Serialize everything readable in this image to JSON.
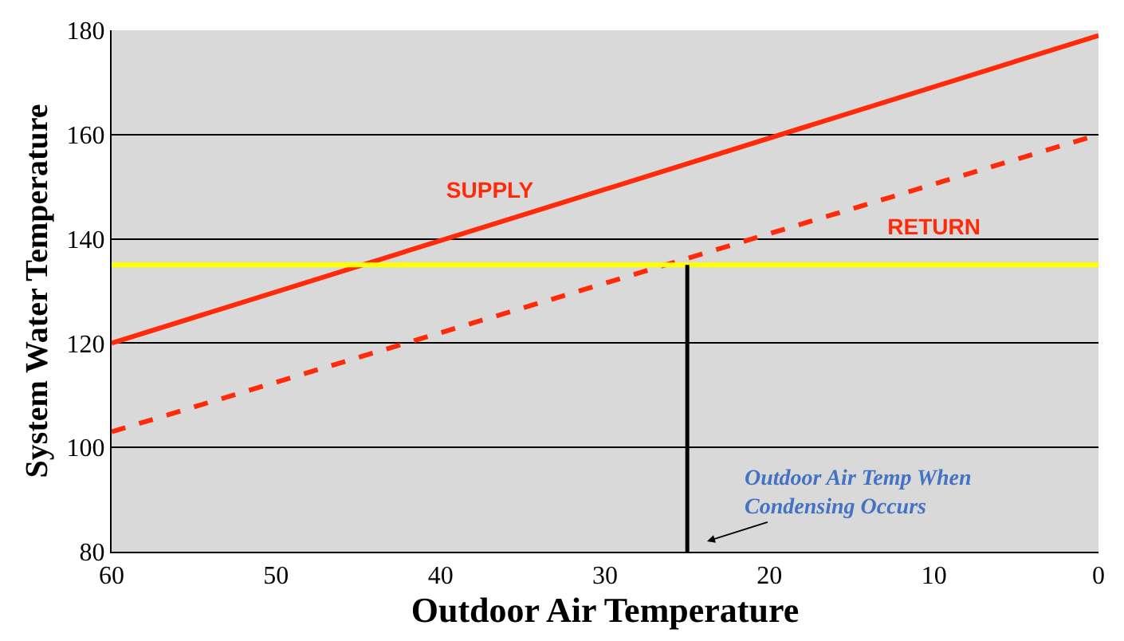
{
  "chart_data": {
    "type": "line",
    "xlabel": "Outdoor Air Temperature",
    "ylabel": "System Water Temperature",
    "x": [
      60,
      0
    ],
    "series": [
      {
        "name": "SUPPLY",
        "color": "#ff2a0a",
        "values": [
          120,
          179
        ],
        "line_style": "solid"
      },
      {
        "name": "RETURN",
        "color": "#ff2a0a",
        "values": [
          103,
          160
        ],
        "line_style": "dashed"
      }
    ],
    "xlim": [
      60,
      0
    ],
    "xticks": [
      60,
      50,
      40,
      30,
      20,
      10,
      0
    ],
    "ylim": [
      80,
      180
    ],
    "yticks": [
      80,
      100,
      120,
      140,
      160,
      180
    ],
    "grid": "y",
    "legend": false,
    "marker": "none",
    "ref_lines": [
      {
        "axis": "y",
        "value": 135,
        "color": "#ffff00"
      },
      {
        "axis": "x",
        "value": 25,
        "color": "#000000"
      }
    ],
    "annotations": [
      "Outdoor Air Temp When\nCondensing Occurs"
    ]
  }
}
